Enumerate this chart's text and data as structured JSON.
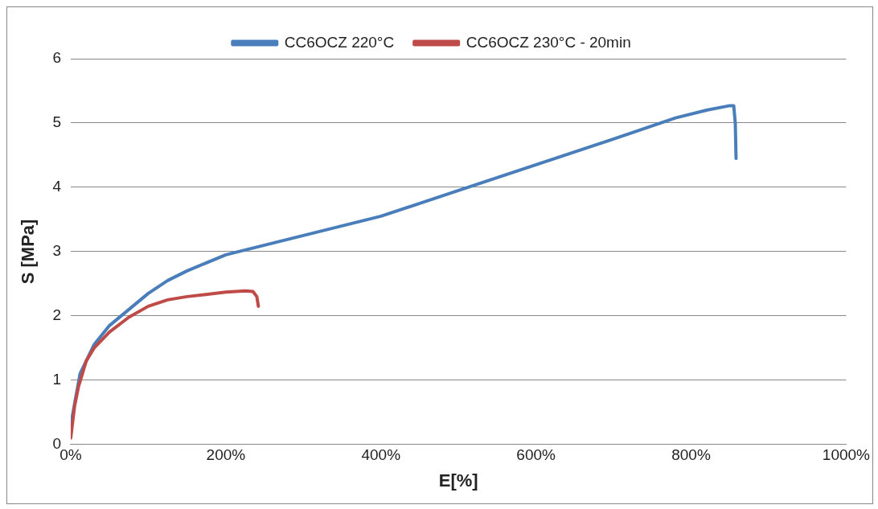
{
  "chart_data": {
    "type": "line",
    "xlabel": "E[%]",
    "ylabel": "S [MPa]",
    "xlim": [
      0,
      1000
    ],
    "xticks": [
      {
        "value": 0,
        "label": "0%"
      },
      {
        "value": 200,
        "label": "200%"
      },
      {
        "value": 400,
        "label": "400%"
      },
      {
        "value": 600,
        "label": "600%"
      },
      {
        "value": 800,
        "label": "800%"
      },
      {
        "value": 1000,
        "label": "1000%"
      }
    ],
    "ylim": [
      0,
      6
    ],
    "yticks": [
      0,
      1,
      2,
      3,
      4,
      5,
      6
    ],
    "grid": "y",
    "legend": "top",
    "marker": "none",
    "line_style": "solid",
    "series": [
      {
        "name": "CC6OCZ 220°C",
        "color": "#4a7ebb",
        "x": [
          0,
          12,
          30,
          50,
          75,
          100,
          125,
          150,
          200,
          250,
          300,
          400,
          500,
          600,
          700,
          780,
          820,
          850,
          855,
          857,
          858
        ],
        "values": [
          0.3,
          1.1,
          1.55,
          1.85,
          2.1,
          2.35,
          2.55,
          2.7,
          2.95,
          3.1,
          3.25,
          3.55,
          3.95,
          4.35,
          4.75,
          5.08,
          5.2,
          5.27,
          5.27,
          5.0,
          4.45
        ]
      },
      {
        "name": "CC6OCZ 230°C - 20min",
        "color": "#be4b48",
        "x": [
          0,
          5,
          10,
          20,
          30,
          50,
          75,
          100,
          125,
          150,
          200,
          225,
          235,
          240,
          242
        ],
        "values": [
          0.1,
          0.6,
          0.9,
          1.3,
          1.5,
          1.75,
          1.98,
          2.15,
          2.25,
          2.3,
          2.37,
          2.39,
          2.38,
          2.3,
          2.15
        ]
      }
    ]
  }
}
